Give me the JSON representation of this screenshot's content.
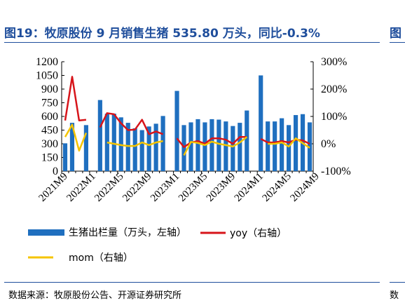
{
  "title": "图19：牧原股份 9 月销售生猪 535.80 万头，同比-0.3%",
  "title_cut": "图",
  "source": "数据来源：牧原股份公告、开源证券研究所",
  "source_cut": "数",
  "colors": {
    "bar": "#1f6fbf",
    "yoy": "#d7141a",
    "mom": "#f5c400",
    "rule": "#1f4e9c"
  },
  "chart_data": {
    "type": "bar",
    "x_tick_labels": [
      "2021M9",
      "2022M1",
      "2022M5",
      "2022M9",
      "2023M1",
      "2023M5",
      "2023M9",
      "2024M1",
      "2024M5",
      "2024M9"
    ],
    "y_left_ticks": [
      "0",
      "150",
      "300",
      "450",
      "600",
      "750",
      "900",
      "1050",
      "1200"
    ],
    "y_right_ticks": [
      "-100%",
      "0%",
      "100%",
      "200%",
      "300%"
    ],
    "ylim_left": [
      0,
      1200
    ],
    "ylim_right": [
      -100,
      300
    ],
    "series": [
      {
        "name": "生猪出栏量（万头，左轴）",
        "kind": "bar",
        "axis": "left",
        "values": [
          305,
          530,
          null,
          505,
          null,
          780,
          630,
          630,
          590,
          530,
          470,
          450,
          490,
          520,
          605,
          null,
          880,
          505,
          535,
          570,
          535,
          570,
          565,
          545,
          495,
          530,
          665,
          null,
          1050,
          545,
          545,
          580,
          505,
          615,
          625,
          535
        ]
      },
      {
        "name": "yoy（右轴）",
        "kind": "line",
        "axis": "right",
        "values": [
          85,
          245,
          85,
          88,
          null,
          60,
          112,
          108,
          75,
          50,
          52,
          88,
          35,
          45,
          35,
          null,
          20,
          -12,
          5,
          10,
          0,
          20,
          20,
          15,
          0,
          25,
          25,
          null,
          18,
          5,
          5,
          10,
          5,
          15,
          12,
          -0.3
        ]
      },
      {
        "name": "mom（右轴）",
        "kind": "line",
        "axis": "right",
        "values": [
          25,
          70,
          -25,
          40,
          null,
          null,
          5,
          0,
          -5,
          -8,
          -8,
          5,
          -5,
          5,
          10,
          null,
          null,
          -42,
          7,
          3,
          -5,
          8,
          0,
          -5,
          -10,
          5,
          25,
          null,
          null,
          0,
          0,
          5,
          -10,
          20,
          2,
          -15
        ]
      }
    ],
    "legend_position": "bottom",
    "grid": false
  }
}
